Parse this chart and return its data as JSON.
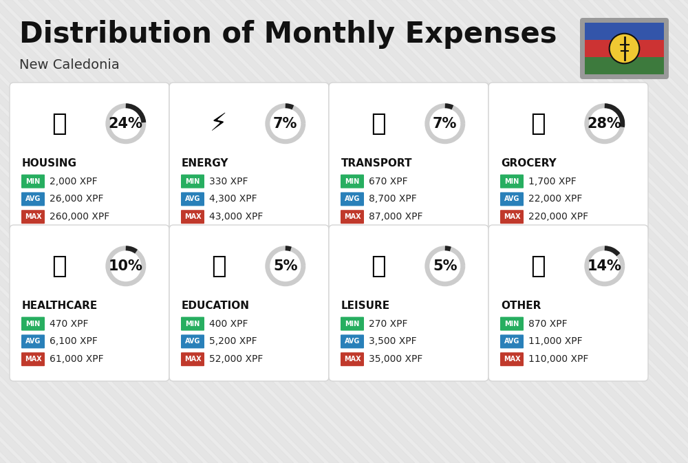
{
  "title": "Distribution of Monthly Expenses",
  "subtitle": "New Caledonia",
  "background_color": "#ebebeb",
  "categories": [
    {
      "name": "HOUSING",
      "pct": 24,
      "min_val": "2,000 XPF",
      "avg_val": "26,000 XPF",
      "max_val": "260,000 XPF",
      "row": 0,
      "col": 0
    },
    {
      "name": "ENERGY",
      "pct": 7,
      "min_val": "330 XPF",
      "avg_val": "4,300 XPF",
      "max_val": "43,000 XPF",
      "row": 0,
      "col": 1
    },
    {
      "name": "TRANSPORT",
      "pct": 7,
      "min_val": "670 XPF",
      "avg_val": "8,700 XPF",
      "max_val": "87,000 XPF",
      "row": 0,
      "col": 2
    },
    {
      "name": "GROCERY",
      "pct": 28,
      "min_val": "1,700 XPF",
      "avg_val": "22,000 XPF",
      "max_val": "220,000 XPF",
      "row": 0,
      "col": 3
    },
    {
      "name": "HEALTHCARE",
      "pct": 10,
      "min_val": "470 XPF",
      "avg_val": "6,100 XPF",
      "max_val": "61,000 XPF",
      "row": 1,
      "col": 0
    },
    {
      "name": "EDUCATION",
      "pct": 5,
      "min_val": "400 XPF",
      "avg_val": "5,200 XPF",
      "max_val": "52,000 XPF",
      "row": 1,
      "col": 1
    },
    {
      "name": "LEISURE",
      "pct": 5,
      "min_val": "270 XPF",
      "avg_val": "3,500 XPF",
      "max_val": "35,000 XPF",
      "row": 1,
      "col": 2
    },
    {
      "name": "OTHER",
      "pct": 14,
      "min_val": "870 XPF",
      "avg_val": "11,000 XPF",
      "max_val": "110,000 XPF",
      "row": 1,
      "col": 3
    }
  ],
  "min_color": "#27ae60",
  "avg_color": "#2980b9",
  "max_color": "#c0392b",
  "arc_dark": "#222222",
  "arc_light": "#cccccc",
  "card_bg": "#ffffff",
  "title_fontsize": 30,
  "subtitle_fontsize": 14,
  "cat_fontsize": 11,
  "pct_fontsize": 15,
  "val_fontsize": 10,
  "lbl_fontsize": 7
}
